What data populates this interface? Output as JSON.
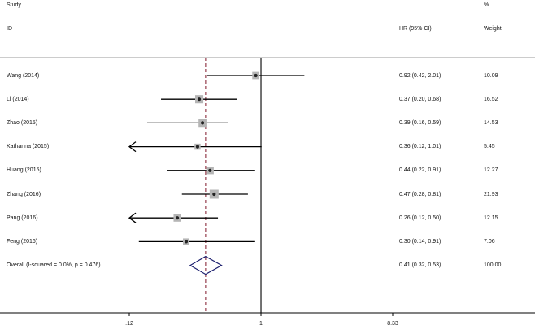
{
  "header": {
    "col_study_top": "Study",
    "col_study_bottom": "ID",
    "col_hr": "HR (95% CI)",
    "col_weight_top": "%",
    "col_weight_bottom": "Weight"
  },
  "chart_data": {
    "type": "forest",
    "x_scale": "log",
    "reference_line": 1,
    "pooled_line": 0.41,
    "ticks": [
      ".12",
      "1",
      "8.33"
    ],
    "tick_values": [
      0.12,
      1,
      8.33
    ],
    "xlim": [
      0.12,
      8.33
    ],
    "studies": [
      {
        "label": "Wang (2014)",
        "hr": 0.92,
        "lo": 0.42,
        "hi": 2.01,
        "ci_text": "0.92 (0.42, 2.01)",
        "weight": 10.09,
        "weight_text": "10.09"
      },
      {
        "label": "Li (2014)",
        "hr": 0.37,
        "lo": 0.2,
        "hi": 0.68,
        "ci_text": "0.37 (0.20, 0.68)",
        "weight": 16.52,
        "weight_text": "16.52"
      },
      {
        "label": "Zhao (2015)",
        "hr": 0.39,
        "lo": 0.16,
        "hi": 0.59,
        "ci_text": "0.39 (0.16, 0.59)",
        "weight": 14.53,
        "weight_text": "14.53"
      },
      {
        "label": "Katharina (2015)",
        "hr": 0.36,
        "lo": 0.12,
        "hi": 1.01,
        "ci_text": "0.36 (0.12, 1.01)",
        "weight": 5.45,
        "weight_text": "5.45",
        "arrow_left": true
      },
      {
        "label": "Huang (2015)",
        "hr": 0.44,
        "lo": 0.22,
        "hi": 0.91,
        "ci_text": "0.44 (0.22, 0.91)",
        "weight": 12.27,
        "weight_text": "12.27"
      },
      {
        "label": "Zhang (2016)",
        "hr": 0.47,
        "lo": 0.28,
        "hi": 0.81,
        "ci_text": "0.47 (0.28, 0.81)",
        "weight": 21.93,
        "weight_text": "21.93"
      },
      {
        "label": "Pang (2016)",
        "hr": 0.26,
        "lo": 0.12,
        "hi": 0.5,
        "ci_text": "0.26 (0.12, 0.50)",
        "weight": 12.15,
        "weight_text": "12.15",
        "arrow_left": true
      },
      {
        "label": "Feng (2016)",
        "hr": 0.3,
        "lo": 0.14,
        "hi": 0.91,
        "ci_text": "0.30 (0.14, 0.91)",
        "weight": 7.06,
        "weight_text": "7.06"
      }
    ],
    "overall": {
      "label": "Overall  (I-squared = 0.0%, p = 0.476)",
      "hr": 0.41,
      "lo": 0.32,
      "hi": 0.53,
      "ci_text": "0.41 (0.32, 0.53)",
      "weight_text": "100.00"
    },
    "colors": {
      "ci_line": "#000000",
      "box": "#b5b5b5",
      "point": "#222222",
      "pooled_dash": "#8b2c3c",
      "diamond": "#1c1f6e",
      "axis": "#000000",
      "header_rule": "#999999"
    }
  }
}
